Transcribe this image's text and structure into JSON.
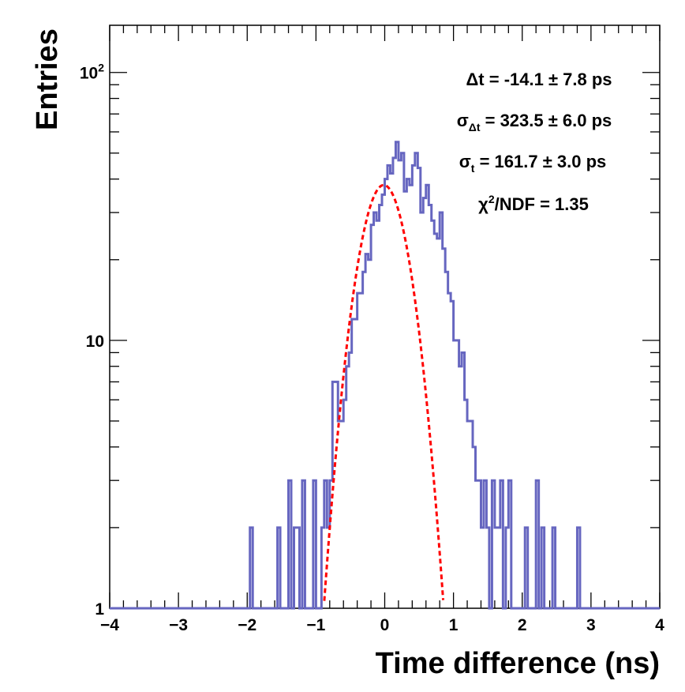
{
  "chart_data": {
    "type": "histogram",
    "xlabel": "Time difference (ns)",
    "ylabel": "Entries",
    "xlim": [
      -4,
      4
    ],
    "ylim": [
      1,
      150
    ],
    "yscale": "log",
    "x_ticks": [
      {
        "value": -4,
        "label": "−4"
      },
      {
        "value": -3,
        "label": "−3"
      },
      {
        "value": -2,
        "label": "−2"
      },
      {
        "value": -1,
        "label": "−1"
      },
      {
        "value": 0,
        "label": "0"
      },
      {
        "value": 1,
        "label": "1"
      },
      {
        "value": 2,
        "label": "2"
      },
      {
        "value": 3,
        "label": "3"
      },
      {
        "value": 4,
        "label": "4"
      }
    ],
    "y_ticks": [
      {
        "value": 1,
        "label": "1"
      },
      {
        "value": 10,
        "label": "10"
      },
      {
        "value": 100,
        "label_base": "10",
        "label_exp": "2"
      }
    ],
    "series": [
      {
        "name": "Time difference histogram",
        "kind": "histogram",
        "color": "#6666c0",
        "bin_width": 0.04,
        "x_start": -4.0,
        "counts": [
          1,
          1,
          1,
          1,
          1,
          1,
          1,
          1,
          1,
          1,
          1,
          1,
          1,
          1,
          1,
          1,
          1,
          1,
          1,
          1,
          1,
          1,
          1,
          1,
          1,
          1,
          1,
          1,
          1,
          1,
          1,
          1,
          1,
          1,
          1,
          1,
          1,
          1,
          1,
          1,
          1,
          1,
          1,
          1,
          1,
          1,
          1,
          1,
          1,
          1,
          1,
          2,
          1,
          1,
          1,
          1,
          1,
          1,
          1,
          1,
          1,
          2,
          1,
          1,
          1,
          3,
          1,
          2,
          2,
          1,
          3,
          1,
          1,
          1,
          3,
          1,
          1,
          2,
          3,
          2,
          3,
          7,
          7,
          5,
          5,
          6,
          8,
          9,
          12,
          12,
          15,
          15,
          18,
          21,
          20,
          27,
          30,
          28,
          32,
          35,
          40,
          45,
          42,
          48,
          55,
          47,
          50,
          36,
          40,
          38,
          45,
          50,
          44,
          30,
          34,
          38,
          32,
          28,
          25,
          24,
          30,
          22,
          18,
          15,
          14,
          10,
          10,
          8,
          9,
          6,
          5,
          5,
          4,
          3,
          3,
          2,
          3,
          2,
          1,
          3,
          2,
          2,
          3,
          1,
          2,
          3,
          1,
          1,
          1,
          1,
          1,
          2,
          1,
          1,
          1,
          3,
          1,
          2,
          1,
          1,
          1,
          2,
          1,
          1,
          1,
          1,
          1,
          1,
          1,
          1,
          2,
          1,
          1,
          1,
          1,
          1,
          1,
          1,
          1,
          1,
          1,
          1,
          1,
          1,
          1,
          1,
          1,
          1,
          1,
          1,
          1,
          1,
          1,
          1,
          1,
          1,
          1,
          1,
          1,
          1
        ]
      },
      {
        "name": "Gaussian fit",
        "kind": "function",
        "color": "#ff0000",
        "style": "dashed",
        "amplitude": 38,
        "mean_ns": -0.0141,
        "sigma_ns": 0.3235,
        "x_range": [
          -1.05,
          0.85
        ]
      }
    ],
    "annotations": [
      {
        "id": "delta_t",
        "symbol": "Δt",
        "text": " = -14.1 ± 7.8 ps"
      },
      {
        "id": "sigma_dt",
        "symbol": "σ",
        "sub": "Δt",
        "text": " = 323.5 ± 6.0 ps"
      },
      {
        "id": "sigma_t",
        "symbol": "σ",
        "sub": "t",
        "text": " = 161.7 ± 3.0 ps"
      },
      {
        "id": "chi2",
        "symbol": "χ",
        "sup": "2",
        "text": "/NDF = 1.35"
      }
    ]
  }
}
